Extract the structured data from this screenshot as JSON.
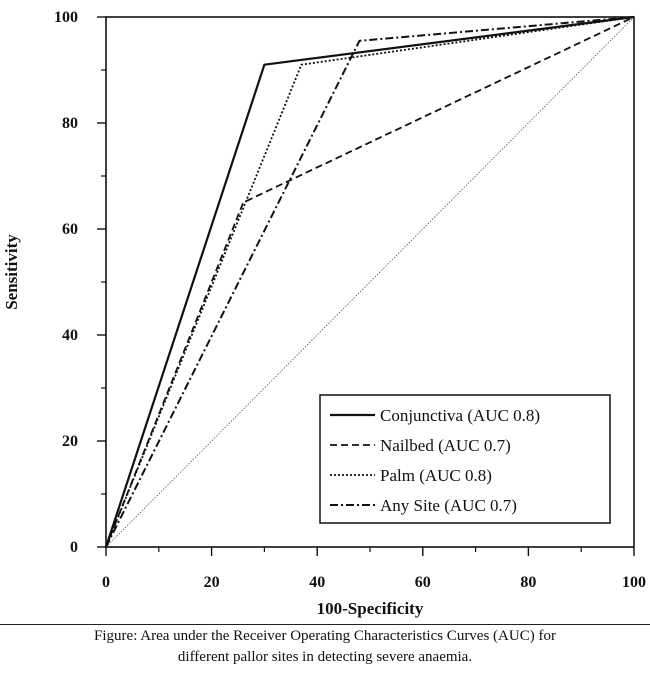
{
  "chart_data": {
    "type": "line",
    "xlabel": "100-Specificity",
    "ylabel": "Sensitivity",
    "xlim": [
      0,
      100
    ],
    "ylim": [
      0,
      100
    ],
    "xticks": [
      0,
      20,
      40,
      60,
      80,
      100
    ],
    "yticks": [
      0,
      20,
      40,
      60,
      80,
      100
    ],
    "grid": false,
    "legend_position": "bottom-right",
    "reference_line": {
      "x": [
        0,
        100
      ],
      "y": [
        0,
        100
      ],
      "style": "dotted-thin"
    },
    "series": [
      {
        "name": "Conjunctiva (AUC 0.8)",
        "style": "solid",
        "x": [
          0,
          30,
          100
        ],
        "y": [
          0,
          91,
          100
        ]
      },
      {
        "name": "Nailbed (AUC 0.7)",
        "style": "dashed",
        "x": [
          0,
          26,
          100
        ],
        "y": [
          0,
          65,
          100
        ]
      },
      {
        "name": "Palm (AUC 0.8)",
        "style": "dotted",
        "x": [
          0,
          37,
          100
        ],
        "y": [
          0,
          91,
          100
        ]
      },
      {
        "name": "Any Site (AUC 0.7)",
        "style": "dashdot",
        "x": [
          0,
          48,
          100
        ],
        "y": [
          0,
          95.5,
          100
        ]
      }
    ]
  },
  "caption": {
    "line1": "Figure: Area under the Receiver Operating Characteristics Curves (AUC) for",
    "line2": "different pallor sites in detecting severe anaemia."
  }
}
